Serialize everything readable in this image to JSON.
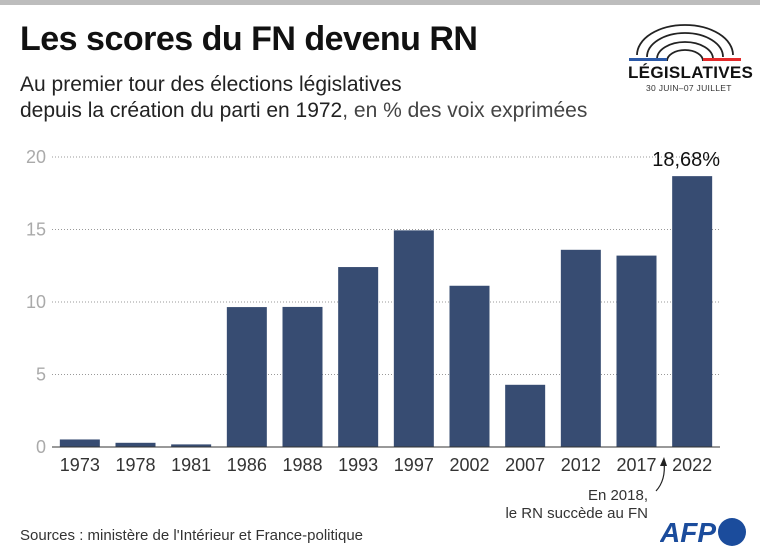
{
  "header": {
    "title": "Les scores du FN devenu RN",
    "subtitle_line1": "Au premier tour des élections législatives",
    "subtitle_line2_main": "depuis la création du parti en 1972",
    "subtitle_line2_unit": ", en % des voix exprimées"
  },
  "logo": {
    "word": "LÉGISLATIVES",
    "date": "30 JUIN–07 JUILLET",
    "colors": {
      "blue": "#2b59a8",
      "red": "#e42a2a"
    }
  },
  "chart_data": {
    "type": "bar",
    "categories": [
      "1973",
      "1978",
      "1981",
      "1986",
      "1988",
      "1993",
      "1997",
      "2002",
      "2007",
      "2012",
      "2017",
      "2022"
    ],
    "values": [
      0.52,
      0.29,
      0.18,
      9.65,
      9.66,
      12.41,
      14.94,
      11.12,
      4.29,
      13.6,
      13.2,
      18.68
    ],
    "ylim": [
      0,
      20
    ],
    "yticks": [
      "0",
      "5",
      "10",
      "15",
      "20"
    ],
    "grid": true,
    "bar_color": "#374c72",
    "data_labels": [
      {
        "category": "2022",
        "text": "18,68%"
      }
    ],
    "annotation": {
      "line1": "En 2018,",
      "line2": "le RN succède au FN"
    }
  },
  "footer": {
    "source": "Sources : ministère de l'Intérieur et France-politique",
    "brand": "AFP",
    "brand_color": "#1b4c9c"
  }
}
